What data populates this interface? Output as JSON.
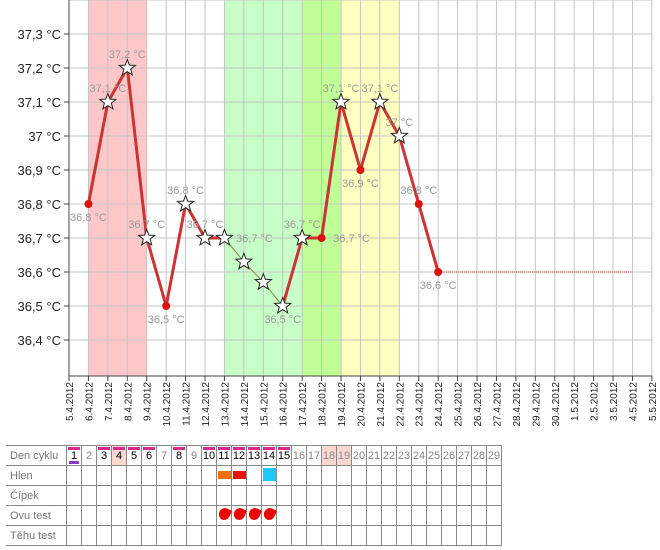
{
  "chart_data": {
    "type": "line",
    "title": "",
    "x_ticks": [
      "5.4.2012",
      "6.4.2012",
      "7.4.2012",
      "8.4.2012",
      "9.4.2012",
      "10.4.2012",
      "11.4.2012",
      "12.4.2012",
      "13.4.2012",
      "14.4.2012",
      "15.4.2012",
      "16.4.2012",
      "17.4.2012",
      "18.4.2012",
      "19.4.2012",
      "20.4.2012",
      "21.4.2012",
      "22.4.2012",
      "23.4.2012",
      "24.4.2012",
      "25.4.2012",
      "26.4.2012",
      "27.4.2012",
      "28.4.2012",
      "29.4.2012",
      "30.4.2012",
      "1.5.2012",
      "2.5.2012",
      "3.5.2012",
      "4.5.2012",
      "5.5.2012"
    ],
    "y_ticks": [
      "36,4 °C",
      "36,5 °C",
      "36,6 °C",
      "36,7 °C",
      "36,8 °C",
      "36,9 °C",
      "37 °C",
      "37,1 °C",
      "37,2 °C",
      "37,3 °C"
    ],
    "ylim": [
      36.4,
      37.3
    ],
    "grid": true,
    "bands": [
      {
        "from": 1,
        "to": 4,
        "color": "#ffc8c8"
      },
      {
        "from": 8,
        "to": 12,
        "color": "#c8ffc8"
      },
      {
        "from": 12,
        "to": 14,
        "color": "#c0ff98"
      },
      {
        "from": 14,
        "to": 17,
        "color": "#ffffc0"
      }
    ],
    "points": [
      {
        "day": 1,
        "value": 36.8,
        "marker": "dot",
        "label": "36,8 °C"
      },
      {
        "day": 2,
        "value": 37.1,
        "marker": "star",
        "label": "37,1 °C"
      },
      {
        "day": 3,
        "value": 37.2,
        "marker": "star",
        "label": "37,2 °C"
      },
      {
        "day": 4,
        "value": 36.7,
        "marker": "star",
        "label": "36,7 °C"
      },
      {
        "day": 5,
        "value": 36.5,
        "marker": "dot",
        "label": "36,5 °C"
      },
      {
        "day": 6,
        "value": 36.8,
        "marker": "star",
        "label": "36,8 °C"
      },
      {
        "day": 7,
        "value": 36.7,
        "marker": "star",
        "label": "36,7 °C"
      },
      {
        "day": 8,
        "value": 36.7,
        "marker": "star",
        "label": "36,7 °C"
      },
      {
        "day": 9,
        "value": 36.63,
        "marker": "star",
        "label": ""
      },
      {
        "day": 10,
        "value": 36.57,
        "marker": "star",
        "label": ""
      },
      {
        "day": 11,
        "value": 36.5,
        "marker": "star",
        "label": "36,5 °C"
      },
      {
        "day": 12,
        "value": 36.7,
        "marker": "star",
        "label": "36,7 °C"
      },
      {
        "day": 13,
        "value": 36.7,
        "marker": "dot",
        "label": "36,7 °C"
      },
      {
        "day": 14,
        "value": 37.1,
        "marker": "star",
        "label": "37,1 °C"
      },
      {
        "day": 15,
        "value": 36.9,
        "marker": "dot",
        "label": "36,9 °C"
      },
      {
        "day": 16,
        "value": 37.1,
        "marker": "star",
        "label": "37,1 °C"
      },
      {
        "day": 17,
        "value": 37.0,
        "marker": "star",
        "label": "37 °C"
      },
      {
        "day": 18,
        "value": 36.8,
        "marker": "dot",
        "label": "36,8 °C"
      },
      {
        "day": 19,
        "value": 36.6,
        "marker": "dot",
        "label": "36,6 °C"
      }
    ],
    "projection": {
      "from_day": 19,
      "to_day": 29,
      "value": 36.6
    },
    "colors": {
      "line": "#cc3333",
      "dot": "#dd1111",
      "interp": "#888844"
    }
  },
  "table": {
    "row_labels": [
      "Den cyklu",
      "Hlen",
      "Čípek",
      "Ovu test",
      "Těhu test"
    ],
    "days": [
      {
        "n": "1",
        "mark": true,
        "under": true
      },
      {
        "n": "2"
      },
      {
        "n": "3",
        "mark": true
      },
      {
        "n": "4",
        "mark": true,
        "hi": true
      },
      {
        "n": "5",
        "mark": true
      },
      {
        "n": "6",
        "mark": true
      },
      {
        "n": "7"
      },
      {
        "n": "8",
        "mark": true
      },
      {
        "n": "9"
      },
      {
        "n": "10",
        "mark": true
      },
      {
        "n": "11",
        "mark": true,
        "hlen": "#f07010",
        "ovu": true
      },
      {
        "n": "12",
        "mark": true,
        "hlen": "#e81010",
        "ovu": true
      },
      {
        "n": "13",
        "mark": true,
        "ovu": true
      },
      {
        "n": "14",
        "mark": true,
        "hlen": "#20c8f8",
        "ovu": true
      },
      {
        "n": "15",
        "mark": true
      },
      {
        "n": "16"
      },
      {
        "n": "17"
      },
      {
        "n": "18",
        "hi": true
      },
      {
        "n": "19",
        "hi": true
      },
      {
        "n": "20"
      },
      {
        "n": "21"
      },
      {
        "n": "22"
      },
      {
        "n": "23"
      },
      {
        "n": "24"
      },
      {
        "n": "25"
      },
      {
        "n": "26"
      },
      {
        "n": "27"
      },
      {
        "n": "28"
      },
      {
        "n": "29"
      }
    ]
  }
}
